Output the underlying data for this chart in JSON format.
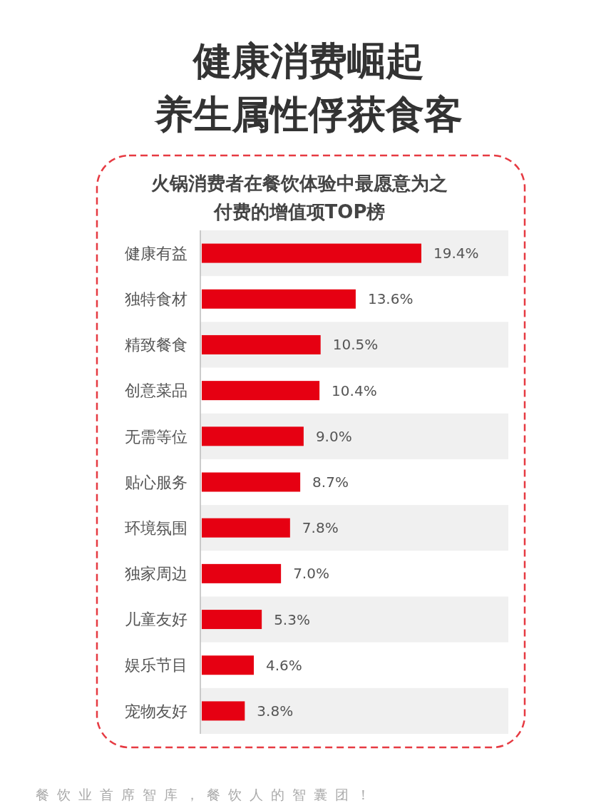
{
  "chart_data": {
    "type": "bar",
    "orientation": "horizontal",
    "title": "健康消费崛起",
    "subtitle": "养生属性俘获食客",
    "categories": [
      "健康有益",
      "独特食材",
      "精致餐食",
      "创意菜品",
      "无需等位",
      "贴心服务",
      "环境氛围",
      "独家周边",
      "儿童友好",
      "娱乐节目",
      "宠物友好"
    ],
    "values": [
      19.4,
      13.6,
      10.5,
      10.4,
      9.0,
      8.7,
      7.8,
      7.0,
      5.3,
      4.6,
      3.8
    ],
    "value_labels": [
      "19.4%",
      "13.6%",
      "10.5%",
      "10.4%",
      "9.0%",
      "8.7%",
      "7.8%",
      "7.0%",
      "5.3%",
      "4.6%",
      "3.8%"
    ],
    "color": "#e60012",
    "bands": [
      {
        "axis": "y",
        "from": "健康有益",
        "to": "健康有益",
        "color": "#f0f0f0"
      },
      {
        "axis": "y",
        "from": "精致餐食",
        "to": "精致餐食",
        "color": "#f0f0f0"
      },
      {
        "axis": "y",
        "from": "无需等位",
        "to": "无需等位",
        "color": "#f0f0f0"
      },
      {
        "axis": "y",
        "from": "环境氛围",
        "to": "环境氛围",
        "color": "#f0f0f0"
      },
      {
        "axis": "y",
        "from": "儿童友好",
        "to": "儿童友好",
        "color": "#f0f0f0"
      },
      {
        "axis": "y",
        "from": "宠物友好",
        "to": "宠物友好",
        "color": "#f0f0f0"
      }
    ],
    "annotations": [
      "火锅消费者在餐饮体验中最愿意为之付费的增值项TOP榜",
      "餐饮业首席智库，餐饮人的智囊团！"
    ]
  }
}
